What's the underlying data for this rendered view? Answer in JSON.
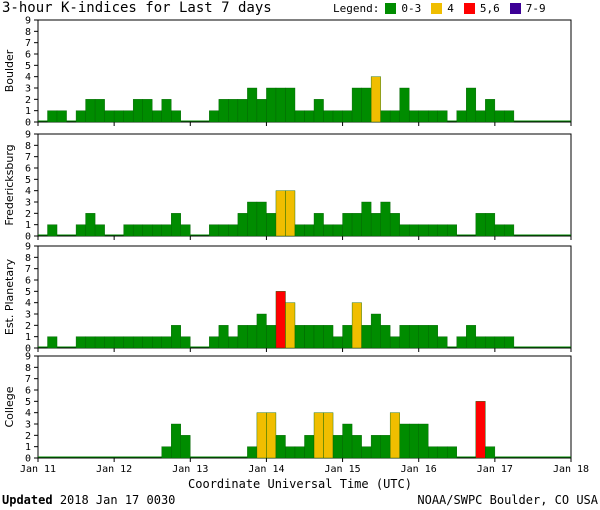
{
  "title": "3-hour K-indices for Last 7 days",
  "legend": {
    "label": "Legend:",
    "items": [
      {
        "label": "0-3",
        "color": "#008c00"
      },
      {
        "label": "4",
        "color": "#f0be00"
      },
      {
        "label": "5,6",
        "color": "#ff0000"
      },
      {
        "label": "7-9",
        "color": "#3c0096"
      }
    ]
  },
  "footer": {
    "updated_label": "Updated",
    "updated_value": "2018 Jan 17 0030",
    "credit": "NOAA/SWPC Boulder, CO USA"
  },
  "chart_data": {
    "type": "bar",
    "title": "3-hour K-indices for Last 7 days",
    "xlabel": "Coordinate Universal Time (UTC)",
    "x_ticks": [
      "Jan 11",
      "Jan 12",
      "Jan 13",
      "Jan 14",
      "Jan 15",
      "Jan 16",
      "Jan 17",
      "Jan 18"
    ],
    "y_ticks": [
      "0",
      "1",
      "2",
      "3",
      "4",
      "5",
      "6",
      "7",
      "8",
      "9"
    ],
    "ylim": [
      0,
      9
    ],
    "bars_per_day": 8,
    "grid": false,
    "color_scale": [
      {
        "range": "0-3",
        "color": "#008c00"
      },
      {
        "range": "4",
        "color": "#f0be00"
      },
      {
        "range": "5,6",
        "color": "#ff0000"
      },
      {
        "range": "7-9",
        "color": "#3c0096"
      }
    ],
    "series": [
      {
        "name": "Boulder",
        "values": [
          0,
          1,
          1,
          0,
          1,
          2,
          2,
          1,
          1,
          1,
          2,
          2,
          1,
          2,
          1,
          0,
          0,
          0,
          1,
          2,
          2,
          2,
          3,
          2,
          3,
          3,
          3,
          1,
          1,
          2,
          1,
          1,
          1,
          3,
          3,
          4,
          1,
          1,
          3,
          1,
          1,
          1,
          1,
          0,
          1,
          3,
          1,
          2,
          1,
          1
        ]
      },
      {
        "name": "Fredericksburg",
        "values": [
          0,
          1,
          0,
          0,
          1,
          2,
          1,
          0,
          0,
          1,
          1,
          1,
          1,
          1,
          2,
          1,
          0,
          0,
          1,
          1,
          1,
          2,
          3,
          3,
          2,
          4,
          4,
          1,
          1,
          2,
          1,
          1,
          2,
          2,
          3,
          2,
          3,
          2,
          1,
          1,
          1,
          1,
          1,
          1,
          0,
          0,
          2,
          2,
          1,
          1
        ]
      },
      {
        "name": "Est. Planetary",
        "values": [
          0,
          1,
          0,
          0,
          1,
          1,
          1,
          1,
          1,
          1,
          1,
          1,
          1,
          1,
          2,
          1,
          0,
          0,
          1,
          2,
          1,
          2,
          2,
          3,
          2,
          5,
          4,
          2,
          2,
          2,
          2,
          1,
          2,
          4,
          2,
          3,
          2,
          1,
          2,
          2,
          2,
          2,
          1,
          0,
          1,
          2,
          1,
          1,
          1,
          1
        ]
      },
      {
        "name": "College",
        "values": [
          0,
          0,
          0,
          0,
          0,
          0,
          0,
          0,
          0,
          0,
          0,
          0,
          0,
          1,
          3,
          2,
          0,
          0,
          0,
          0,
          0,
          0,
          1,
          4,
          4,
          2,
          1,
          1,
          2,
          4,
          4,
          2,
          3,
          2,
          1,
          2,
          2,
          4,
          3,
          3,
          3,
          1,
          1,
          1,
          0,
          0,
          5,
          1,
          0,
          0
        ]
      }
    ]
  }
}
